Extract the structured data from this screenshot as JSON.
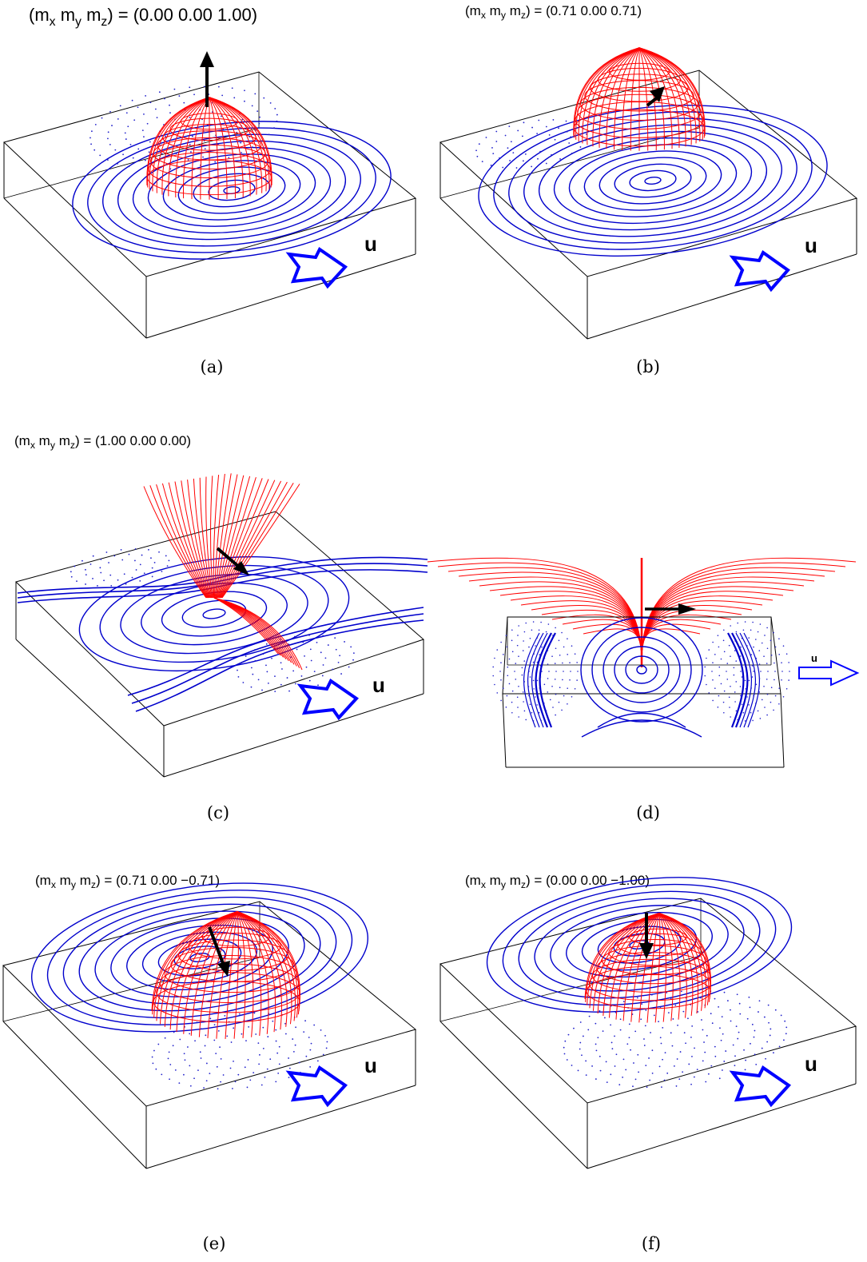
{
  "figure": {
    "panels": [
      {
        "id": "a",
        "caption": "(a)",
        "title_prefix": "(m",
        "title_value": ") = (0.00 0.00 1.00)",
        "u_label": "u",
        "sub_x": "x",
        "sub_y": "y",
        "sub_z": "z",
        "m": [
          0.0,
          0.0,
          1.0
        ]
      },
      {
        "id": "b",
        "caption": "(b)",
        "title_prefix": "(m",
        "title_value": ") = (0.71 0.00 0.71)",
        "u_label": "u",
        "sub_x": "x",
        "sub_y": "y",
        "sub_z": "z",
        "m": [
          0.71,
          0.0,
          0.71
        ]
      },
      {
        "id": "c",
        "caption": "(c)",
        "title_prefix": "(m",
        "title_value": ") = (1.00 0.00 0.00)",
        "u_label": "u",
        "sub_x": "x",
        "sub_y": "y",
        "sub_z": "z",
        "m": [
          1.0,
          0.0,
          0.0
        ]
      },
      {
        "id": "d",
        "caption": "(d)",
        "u_label": "u"
      },
      {
        "id": "e",
        "caption": "(e)",
        "title_prefix": "(m",
        "title_value": ") = (0.71 0.00 −0.71)",
        "u_label": "u",
        "sub_x": "x",
        "sub_y": "y",
        "sub_z": "z",
        "m": [
          0.71,
          0.0,
          -0.71
        ]
      },
      {
        "id": "f",
        "caption": "(f)",
        "title_prefix": "(m",
        "title_value": ") = (0.00 0.00 −1.00)",
        "u_label": "u",
        "sub_x": "x",
        "sub_y": "y",
        "sub_z": "z",
        "m": [
          0.0,
          0.0,
          -1.0
        ]
      }
    ],
    "colors": {
      "field_lines_3d": "#ff0000",
      "contour_lines": "#0000cc",
      "box_edges": "#000000",
      "moment_arrow": "#000000",
      "velocity_arrow": "#0000ff"
    }
  }
}
